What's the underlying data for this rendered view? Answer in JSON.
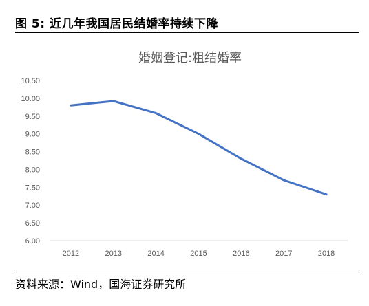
{
  "figure_title": "图 5:  近几年我国居民结婚率持续下降",
  "source": "资料来源：Wind，国海证券研究所",
  "chart_data": {
    "type": "line",
    "title": "婚姻登记:粗结婚率",
    "xlabel": "",
    "ylabel": "",
    "categories": [
      "2012",
      "2013",
      "2014",
      "2015",
      "2016",
      "2017",
      "2018"
    ],
    "series": [
      {
        "values": [
          9.8,
          9.92,
          9.58,
          9.0,
          8.3,
          7.7,
          7.3
        ],
        "color": "#4472C4"
      }
    ],
    "ylim": [
      6.0,
      10.5
    ],
    "yticks": [
      "10.50",
      "10.00",
      "9.50",
      "9.00",
      "8.50",
      "8.00",
      "7.50",
      "7.00",
      "6.50",
      "6.00"
    ],
    "grid": false,
    "legend": "none"
  }
}
